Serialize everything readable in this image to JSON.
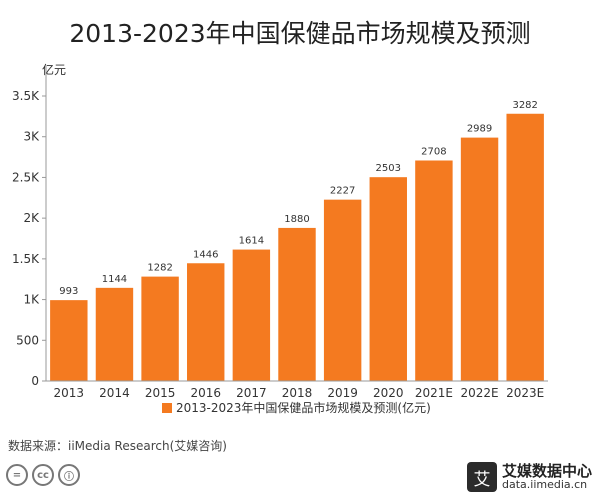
{
  "chart_data": {
    "type": "bar",
    "title": "2013-2023年中国保健品市场规模及预测",
    "ylabel": "亿元",
    "xlabel": "",
    "categories": [
      "2013",
      "2014",
      "2015",
      "2016",
      "2017",
      "2018",
      "2019",
      "2020",
      "2021E",
      "2022E",
      "2023E"
    ],
    "values": [
      993,
      1144,
      1282,
      1446,
      1614,
      1880,
      2227,
      2503,
      2708,
      2989,
      3282
    ],
    "ylim": [
      0,
      3500
    ],
    "yticks": [
      0,
      500,
      1000,
      1500,
      2000,
      2500,
      3000,
      3500
    ],
    "ytick_labels": [
      "0",
      "500",
      "1K",
      "1.5K",
      "2K",
      "2.5K",
      "3K",
      "3.5K"
    ],
    "series": [
      {
        "name": "2013-2023年中国保健品市场规模及预测(亿元)",
        "color": "#f47a20"
      }
    ],
    "legend": "bottom-center",
    "grid": false
  },
  "source_text": "数据来源：iiMedia Research(艾媒咨询)",
  "footer": {
    "cc_icons": [
      "cc-license-icon",
      "cc-attribution-icon",
      "cc-noncommercial-icon"
    ],
    "cc_glyphs": [
      "=",
      "cc",
      "ⓘ"
    ],
    "brand_mark": "艾",
    "brand_name": "艾媒数据中心",
    "brand_url": "data.iimedia.cn"
  }
}
